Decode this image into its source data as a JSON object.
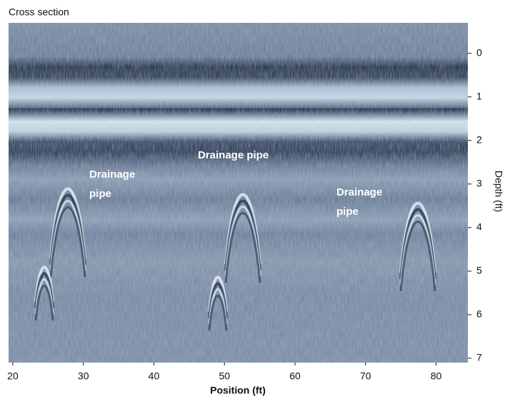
{
  "chart_data": {
    "type": "radargram",
    "title": "Cross section",
    "xlabel": "Position (ft)",
    "ylabel": "Depth (ft)",
    "xlim": [
      19.4,
      84.5
    ],
    "xticks": [
      20,
      30,
      40,
      50,
      60,
      70,
      80
    ],
    "ylim": [
      -0.7,
      7.1
    ],
    "yticks": [
      0,
      1,
      2,
      3,
      4,
      5,
      6,
      7
    ],
    "annotations": [
      {
        "lines": [
          "Drainage",
          "pipe"
        ]
      },
      {
        "lines": [
          "Drainage pipe"
        ]
      },
      {
        "lines": [
          "Drainage",
          "pipe"
        ]
      }
    ]
  }
}
